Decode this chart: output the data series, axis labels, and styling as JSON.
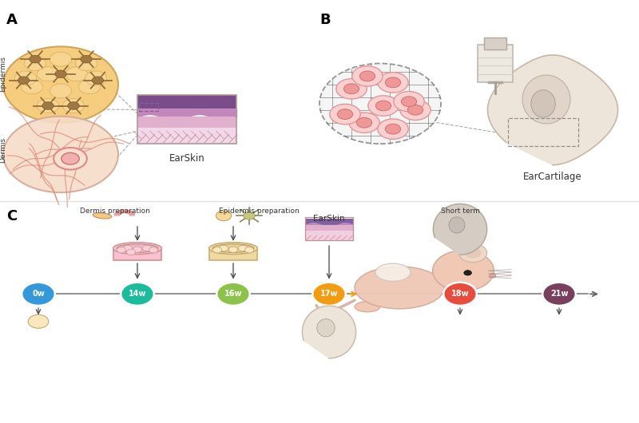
{
  "bg_color": "#ffffff",
  "panel_A_label": "A",
  "panel_B_label": "B",
  "panel_C_label": "C",
  "earskin_label": "EarSkin",
  "earcartilage_label": "EarCartilage",
  "epidermis_label": "Epidermis",
  "dermis_label": "Dermis",
  "timeline_labels": [
    "0w",
    "14w",
    "16w",
    "17w",
    "18w",
    "21w"
  ],
  "timeline_colors": [
    "#3498db",
    "#1abc9c",
    "#8bc34a",
    "#f39c12",
    "#e74c3c",
    "#7b3f5e"
  ],
  "dermis_prep_label": "Dermis preparation",
  "epidermis_prep_label": "Epidermis preparation",
  "short_term_label": "Short term",
  "earskin_c_label": "EarSkin"
}
